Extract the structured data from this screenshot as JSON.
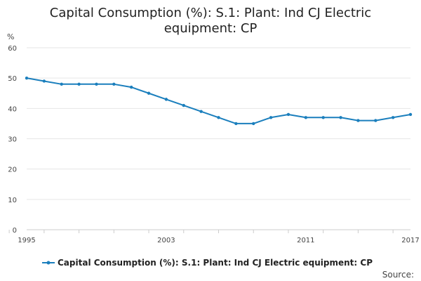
{
  "chart_data": {
    "type": "line",
    "title": "Capital Consumption (%): S.1: Plant: Ind CJ Electric equipment: CP",
    "title_lines": [
      "Capital Consumption (%): S.1: Plant: Ind CJ Electric",
      "equipment: CP"
    ],
    "ylabel": "%",
    "xlabel": "",
    "ylim": [
      0,
      60
    ],
    "yticks": [
      0,
      10,
      20,
      30,
      40,
      50,
      60
    ],
    "xlim": [
      1995,
      2017
    ],
    "xtick_labels": [
      "1995",
      "2003",
      "2011",
      "2017"
    ],
    "grid": true,
    "legend_position": "bottom",
    "series": [
      {
        "name": "Capital Consumption (%): S.1: Plant: Ind CJ Electric equipment: CP",
        "color": "#1b7fbd",
        "x": [
          1995,
          1996,
          1997,
          1998,
          1999,
          2000,
          2001,
          2002,
          2003,
          2004,
          2005,
          2006,
          2007,
          2008,
          2009,
          2010,
          2011,
          2012,
          2013,
          2014,
          2015,
          2016,
          2017
        ],
        "values": [
          50,
          49,
          48,
          48,
          48,
          48,
          47,
          45,
          43,
          41,
          39,
          37,
          35,
          35,
          37,
          38,
          37,
          37,
          37,
          36,
          36,
          37,
          38
        ]
      }
    ]
  },
  "source_label": "Source:"
}
